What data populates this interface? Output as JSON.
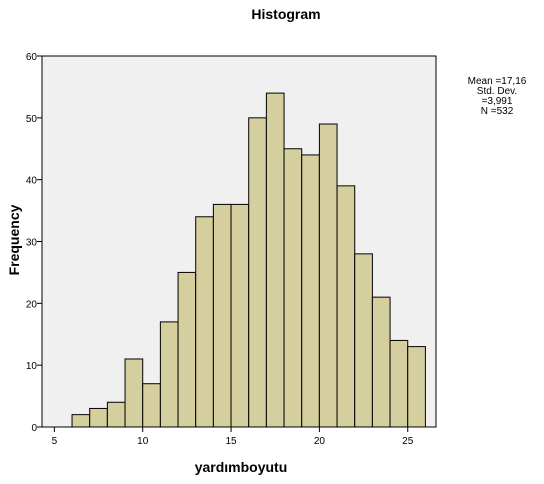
{
  "chart_data": {
    "type": "bar",
    "title": "Histogram",
    "xlabel": "yardımboyutu",
    "ylabel": "Frequency",
    "xlim": [
      4.3,
      26.6
    ],
    "ylim": [
      0,
      60
    ],
    "bin_width": 1,
    "bins": [
      {
        "start": 6,
        "end": 7,
        "value": 2
      },
      {
        "start": 7,
        "end": 8,
        "value": 3
      },
      {
        "start": 8,
        "end": 9,
        "value": 4
      },
      {
        "start": 9,
        "end": 10,
        "value": 11
      },
      {
        "start": 10,
        "end": 11,
        "value": 7
      },
      {
        "start": 11,
        "end": 12,
        "value": 17
      },
      {
        "start": 12,
        "end": 13,
        "value": 25
      },
      {
        "start": 13,
        "end": 14,
        "value": 34
      },
      {
        "start": 14,
        "end": 15,
        "value": 36
      },
      {
        "start": 15,
        "end": 16,
        "value": 36
      },
      {
        "start": 16,
        "end": 17,
        "value": 50
      },
      {
        "start": 17,
        "end": 18,
        "value": 54
      },
      {
        "start": 18,
        "end": 19,
        "value": 45
      },
      {
        "start": 19,
        "end": 20,
        "value": 44
      },
      {
        "start": 20,
        "end": 21,
        "value": 49
      },
      {
        "start": 21,
        "end": 22,
        "value": 39
      },
      {
        "start": 22,
        "end": 23,
        "value": 28
      },
      {
        "start": 23,
        "end": 24,
        "value": 21
      },
      {
        "start": 24,
        "end": 25,
        "value": 14
      },
      {
        "start": 25,
        "end": 26,
        "value": 13
      }
    ],
    "x_ticks": [
      5,
      10,
      15,
      20,
      25
    ],
    "y_ticks": [
      0,
      10,
      20,
      30,
      40,
      50,
      60
    ],
    "grid": false,
    "stats": {
      "mean": "Mean =17,16",
      "std_dev": "Std. Dev. =3,991",
      "n": "N =532"
    },
    "colors": {
      "bar_fill": "#d5cf9f",
      "bar_stroke": "#000000",
      "plot_background": "#f0f0f0"
    }
  }
}
